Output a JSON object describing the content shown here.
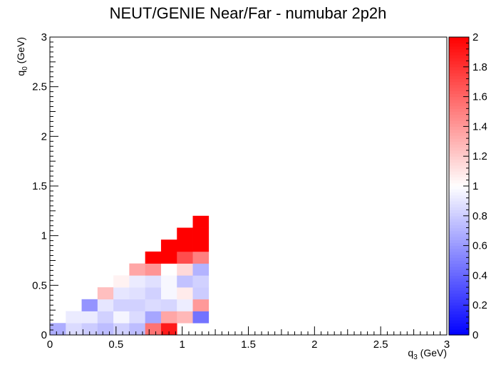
{
  "chart_data": {
    "type": "heatmap",
    "title": "NEUT/GENIE Near/Far - numubar 2p2h",
    "xlabel": {
      "main": "q",
      "sub": "3",
      "unit": " (GeV)"
    },
    "ylabel": {
      "main": "q",
      "sub": "0",
      "unit": " (GeV)"
    },
    "xlim": [
      0,
      3
    ],
    "ylim": [
      0,
      3
    ],
    "zlim": [
      0,
      2
    ],
    "x_ticks": [
      "0",
      "0.5",
      "1",
      "1.5",
      "2",
      "2.5",
      "3"
    ],
    "y_ticks": [
      "0",
      "0.5",
      "1",
      "1.5",
      "2",
      "2.5",
      "3"
    ],
    "z_ticks": [
      "0",
      "0.2",
      "0.4",
      "0.6",
      "0.8",
      "1",
      "1.2",
      "1.4",
      "1.6",
      "1.8",
      "2"
    ],
    "bin_width": 0.12,
    "colorscale": [
      "#0000ff",
      "#ffffff",
      "#ff0000"
    ],
    "cells": [
      {
        "x": 0.0,
        "y": 0.0,
        "z": 0.68
      },
      {
        "x": 0.12,
        "y": 0.0,
        "z": 0.86
      },
      {
        "x": 0.24,
        "y": 0.0,
        "z": 0.8
      },
      {
        "x": 0.36,
        "y": 0.0,
        "z": 0.74
      },
      {
        "x": 0.48,
        "y": 0.0,
        "z": 0.82
      },
      {
        "x": 0.6,
        "y": 0.0,
        "z": 0.74
      },
      {
        "x": 0.72,
        "y": 0.0,
        "z": 1.55
      },
      {
        "x": 0.84,
        "y": 0.0,
        "z": 1.9
      },
      {
        "x": 0.12,
        "y": 0.12,
        "z": 0.92
      },
      {
        "x": 0.24,
        "y": 0.12,
        "z": 0.92
      },
      {
        "x": 0.36,
        "y": 0.12,
        "z": 0.82
      },
      {
        "x": 0.48,
        "y": 0.12,
        "z": 0.96
      },
      {
        "x": 0.6,
        "y": 0.12,
        "z": 0.86
      },
      {
        "x": 0.72,
        "y": 0.12,
        "z": 0.65
      },
      {
        "x": 0.84,
        "y": 0.12,
        "z": 1.35
      },
      {
        "x": 0.96,
        "y": 0.12,
        "z": 1.28
      },
      {
        "x": 1.08,
        "y": 0.12,
        "z": 0.45
      },
      {
        "x": 0.24,
        "y": 0.24,
        "z": 0.58
      },
      {
        "x": 0.36,
        "y": 0.24,
        "z": 0.9
      },
      {
        "x": 0.48,
        "y": 0.24,
        "z": 0.82
      },
      {
        "x": 0.6,
        "y": 0.24,
        "z": 0.82
      },
      {
        "x": 0.72,
        "y": 0.24,
        "z": 0.86
      },
      {
        "x": 0.84,
        "y": 0.24,
        "z": 0.84
      },
      {
        "x": 0.96,
        "y": 0.24,
        "z": 0.93
      },
      {
        "x": 1.08,
        "y": 0.24,
        "z": 1.4
      },
      {
        "x": 0.36,
        "y": 0.36,
        "z": 1.25
      },
      {
        "x": 0.48,
        "y": 0.36,
        "z": 0.9
      },
      {
        "x": 0.6,
        "y": 0.36,
        "z": 0.88
      },
      {
        "x": 0.72,
        "y": 0.36,
        "z": 0.82
      },
      {
        "x": 0.84,
        "y": 0.36,
        "z": 0.97
      },
      {
        "x": 0.96,
        "y": 0.36,
        "z": 1.08
      },
      {
        "x": 1.08,
        "y": 0.36,
        "z": 0.8
      },
      {
        "x": 0.48,
        "y": 0.48,
        "z": 1.05
      },
      {
        "x": 0.6,
        "y": 0.48,
        "z": 0.92
      },
      {
        "x": 0.72,
        "y": 0.48,
        "z": 0.88
      },
      {
        "x": 0.84,
        "y": 0.48,
        "z": 0.97
      },
      {
        "x": 0.96,
        "y": 0.48,
        "z": 0.76
      },
      {
        "x": 1.08,
        "y": 0.48,
        "z": 0.82
      },
      {
        "x": 0.6,
        "y": 0.6,
        "z": 1.35
      },
      {
        "x": 0.72,
        "y": 0.6,
        "z": 1.42
      },
      {
        "x": 0.84,
        "y": 0.6,
        "z": 1.0
      },
      {
        "x": 0.96,
        "y": 0.6,
        "z": 1.15
      },
      {
        "x": 1.08,
        "y": 0.6,
        "z": 0.7
      },
      {
        "x": 0.72,
        "y": 0.72,
        "z": 2.0
      },
      {
        "x": 0.84,
        "y": 0.72,
        "z": 2.0
      },
      {
        "x": 0.96,
        "y": 0.72,
        "z": 1.7
      },
      {
        "x": 1.08,
        "y": 0.72,
        "z": 1.5
      },
      {
        "x": 0.84,
        "y": 0.84,
        "z": 2.0
      },
      {
        "x": 0.96,
        "y": 0.84,
        "z": 2.0
      },
      {
        "x": 1.08,
        "y": 0.84,
        "z": 2.0
      },
      {
        "x": 0.96,
        "y": 0.96,
        "z": 2.0
      },
      {
        "x": 1.08,
        "y": 0.96,
        "z": 2.0
      },
      {
        "x": 1.08,
        "y": 1.08,
        "z": 2.0
      }
    ]
  }
}
